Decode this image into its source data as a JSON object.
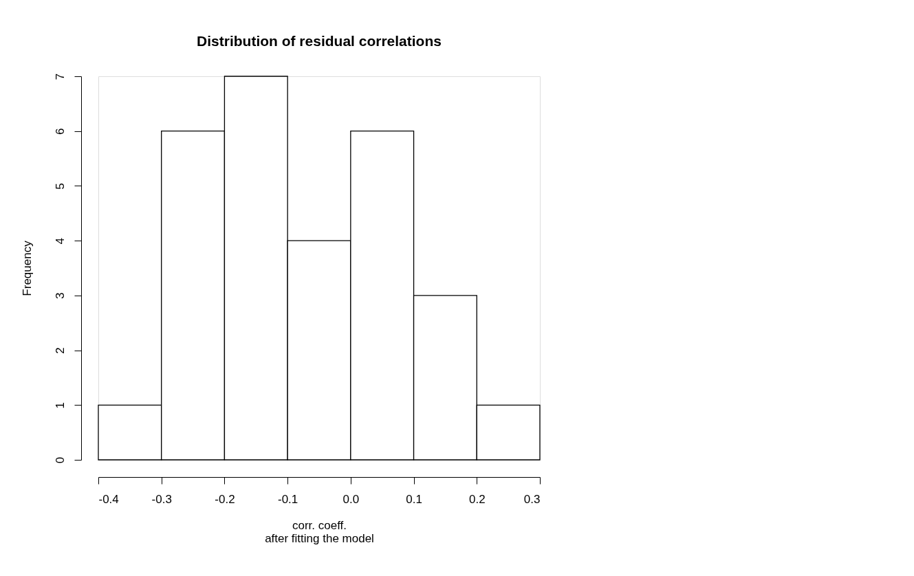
{
  "chart_data": {
    "type": "histogram",
    "title": "Distribution of residual correlations",
    "xlabel": "corr. coeff.\nafter fitting the model",
    "ylabel": "Frequency",
    "bins": [
      -0.4,
      -0.3,
      -0.2,
      -0.1,
      0.0,
      0.1,
      0.2,
      0.3
    ],
    "values": [
      1,
      6,
      7,
      4,
      6,
      3,
      1
    ],
    "color": "#ffffff",
    "xlim": [
      -0.4,
      0.3
    ],
    "ylim": [
      0,
      7
    ],
    "xticks": [
      -0.4,
      -0.3,
      -0.2,
      {
        "value": -0.1,
        "label": "-0.1"
      },
      {
        "value": 0.0,
        "label": "0.0"
      },
      0.1,
      0.2,
      0.3
    ],
    "yticks": [
      0,
      1,
      2,
      3,
      4,
      5,
      6,
      7
    ],
    "grid": false
  }
}
